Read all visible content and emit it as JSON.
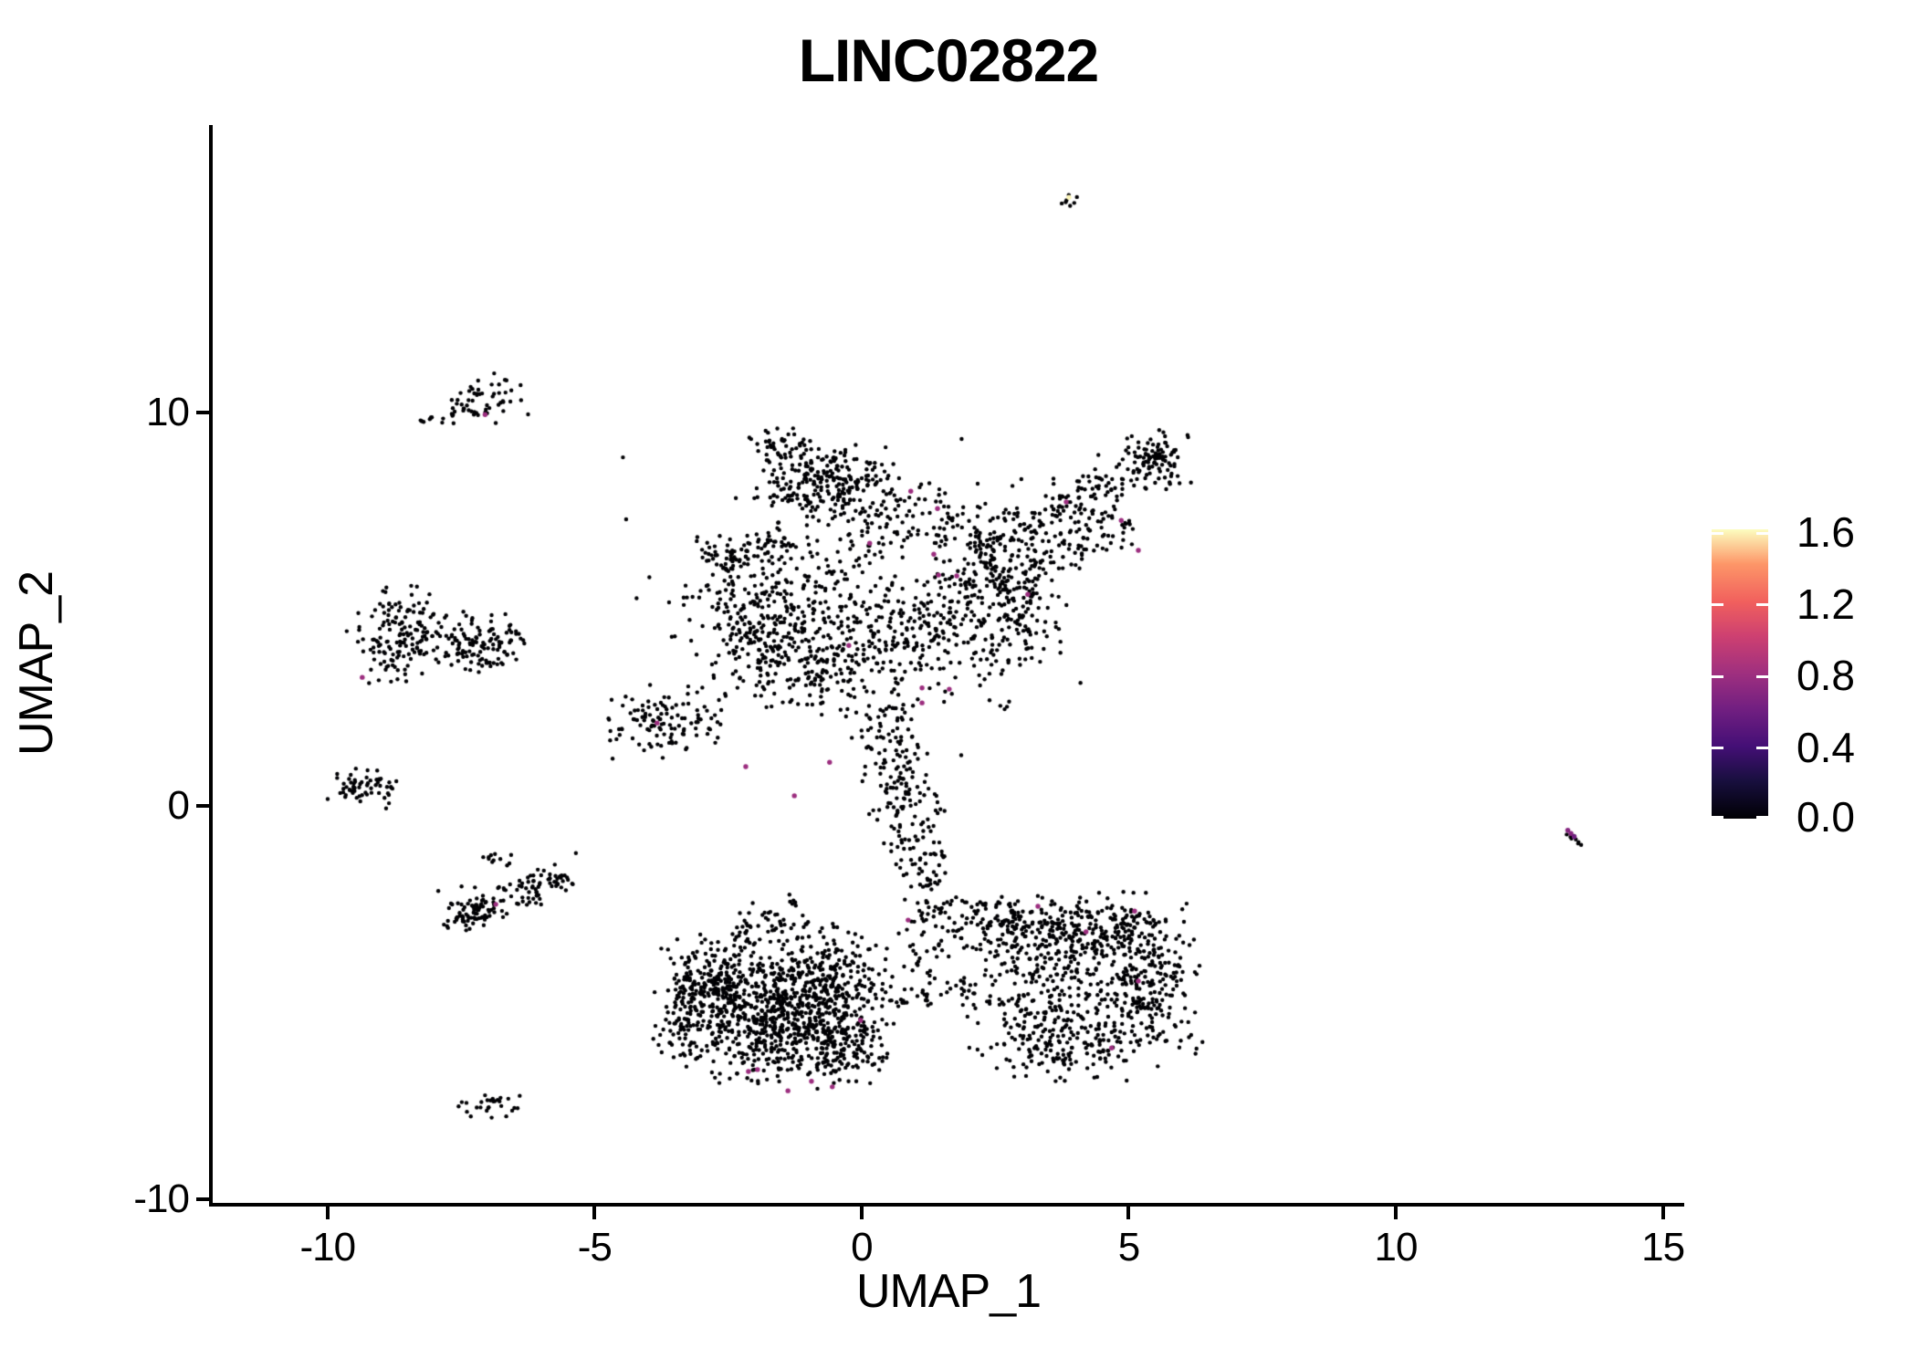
{
  "title": "LINC02822",
  "axes": {
    "x_label": "UMAP_1",
    "y_label": "UMAP_2",
    "x_ticks": [
      -10,
      -5,
      0,
      5,
      10,
      15
    ],
    "y_ticks": [
      -10,
      0,
      10
    ],
    "xlim": [
      -12.15,
      15.4
    ],
    "ylim": [
      -10.09,
      17.31
    ]
  },
  "colorbar": {
    "tick_labels": [
      "1.6",
      "1.2",
      "0.8",
      "0.4",
      "0.0"
    ],
    "tick_values": [
      1.6,
      1.2,
      0.8,
      0.4,
      0.0
    ],
    "vmin": 0.0,
    "vmax": 1.615,
    "colormap": "magma",
    "stops": [
      [
        0.0,
        "#000004"
      ],
      [
        0.13,
        "#180f3e"
      ],
      [
        0.25,
        "#440f76"
      ],
      [
        0.38,
        "#721f81"
      ],
      [
        0.5,
        "#9e2f7f"
      ],
      [
        0.63,
        "#cd4071"
      ],
      [
        0.75,
        "#f1605d"
      ],
      [
        0.88,
        "#fd9668"
      ],
      [
        1.0,
        "#fcfdbf"
      ]
    ]
  },
  "chart_data": {
    "type": "scatter",
    "title": "LINC02822",
    "xlabel": "UMAP_1",
    "ylabel": "UMAP_2",
    "legend_title_values": "expression 0.0 - 1.6",
    "point_color_zero": "#000004",
    "seed": 42,
    "point_radius": 2.2,
    "clusters": [
      {
        "kind": "gauss",
        "cx": 3.93,
        "cy": 15.42,
        "sx": 0.1,
        "sy": 0.09,
        "n": 4
      },
      {
        "kind": "gauss",
        "cx": -7.08,
        "cy": 10.38,
        "sx": 0.4,
        "sy": 0.3,
        "n": 48
      },
      {
        "kind": "gauss",
        "cx": -8.02,
        "cy": 9.86,
        "sx": 0.2,
        "sy": 0.09,
        "n": 10
      },
      {
        "kind": "ridge",
        "x1": -7.7,
        "y1": 9.95,
        "x2": -7.2,
        "y2": 10.02,
        "w": 0.07,
        "n": 8
      },
      {
        "kind": "gauss",
        "cx": -8.65,
        "cy": 4.6,
        "sx": 0.45,
        "sy": 0.5,
        "n": 95
      },
      {
        "kind": "gauss",
        "cx": -7.55,
        "cy": 4.2,
        "sx": 0.62,
        "sy": 0.38,
        "n": 115
      },
      {
        "kind": "gauss",
        "cx": -6.92,
        "cy": 3.9,
        "sx": 0.3,
        "sy": 0.3,
        "n": 40
      },
      {
        "kind": "gauss",
        "cx": -8.95,
        "cy": 3.55,
        "sx": 0.25,
        "sy": 0.3,
        "n": 25
      },
      {
        "kind": "gauss",
        "cx": -9.35,
        "cy": 0.45,
        "sx": 0.3,
        "sy": 0.24,
        "n": 60
      },
      {
        "kind": "gauss",
        "cx": -6.85,
        "cy": -1.3,
        "sx": 0.2,
        "sy": 0.13,
        "n": 11
      },
      {
        "kind": "ridge",
        "x1": -7.5,
        "y1": -2.9,
        "x2": -5.5,
        "y2": -1.75,
        "w": 0.2,
        "n": 110
      },
      {
        "kind": "gauss",
        "cx": -7.35,
        "cy": -2.7,
        "sx": 0.32,
        "sy": 0.3,
        "n": 45
      },
      {
        "kind": "gauss",
        "cx": -6.95,
        "cy": -7.6,
        "sx": 0.32,
        "sy": 0.16,
        "n": 28
      },
      {
        "kind": "gauss",
        "cx": -0.75,
        "cy": 8.3,
        "sx": 0.62,
        "sy": 0.5,
        "n": 230
      },
      {
        "kind": "gauss",
        "cx": -1.5,
        "cy": 9.2,
        "sx": 0.3,
        "sy": 0.22,
        "n": 35
      },
      {
        "kind": "gauss",
        "cx": 0.9,
        "cy": 7.3,
        "sx": 0.95,
        "sy": 0.5,
        "n": 140
      },
      {
        "kind": "ridge",
        "x1": 2.2,
        "y1": 6.3,
        "x2": 5.55,
        "y2": 8.95,
        "w": 0.32,
        "n": 210
      },
      {
        "kind": "gauss",
        "cx": 5.55,
        "cy": 8.85,
        "sx": 0.28,
        "sy": 0.38,
        "n": 75
      },
      {
        "kind": "ridge",
        "x1": 2.6,
        "y1": 5.6,
        "x2": 5.0,
        "y2": 7.3,
        "w": 0.27,
        "n": 95
      },
      {
        "kind": "gauss",
        "cx": 2.2,
        "cy": 5.7,
        "sx": 0.5,
        "sy": 0.45,
        "n": 65
      },
      {
        "kind": "gauss",
        "cx": -3.6,
        "cy": 2.1,
        "sx": 0.52,
        "sy": 0.5,
        "n": 115
      },
      {
        "kind": "gauss",
        "cx": -1.6,
        "cy": 5.1,
        "sx": 0.8,
        "sy": 0.85,
        "n": 280
      },
      {
        "kind": "gauss",
        "cx": -1.0,
        "cy": 3.6,
        "sx": 0.85,
        "sy": 0.6,
        "n": 210
      },
      {
        "kind": "ridge",
        "x1": -2.9,
        "y1": 6.1,
        "x2": -1.3,
        "y2": 6.9,
        "w": 0.3,
        "n": 75
      },
      {
        "kind": "gauss",
        "cx": 1.3,
        "cy": 4.5,
        "sx": 0.95,
        "sy": 0.85,
        "n": 230
      },
      {
        "kind": "gauss",
        "cx": 2.85,
        "cy": 4.9,
        "sx": 0.5,
        "sy": 0.6,
        "n": 90
      },
      {
        "kind": "ridge",
        "x1": 0.35,
        "y1": 2.6,
        "x2": 0.9,
        "y2": -0.5,
        "w": 0.33,
        "n": 150
      },
      {
        "kind": "ridge",
        "x1": 0.9,
        "y1": -0.5,
        "x2": 1.4,
        "y2": -2.9,
        "w": 0.28,
        "n": 90
      },
      {
        "kind": "gauss",
        "cx": 0.1,
        "cy": 5.3,
        "sx": 2.1,
        "sy": 1.9,
        "n": 130
      },
      {
        "kind": "gauss",
        "cx": -1.7,
        "cy": -5.3,
        "sx": 0.9,
        "sy": 0.8,
        "n": 720
      },
      {
        "kind": "gauss",
        "cx": -2.7,
        "cy": -4.35,
        "sx": 0.5,
        "sy": 0.5,
        "n": 180
      },
      {
        "kind": "gauss",
        "cx": -0.6,
        "cy": -4.3,
        "sx": 0.6,
        "sy": 0.6,
        "n": 180
      },
      {
        "kind": "gauss",
        "cx": -0.35,
        "cy": -6.1,
        "sx": 0.55,
        "sy": 0.5,
        "n": 150
      },
      {
        "kind": "ridge",
        "x1": -2.4,
        "y1": -3.4,
        "x2": -1.1,
        "y2": -2.7,
        "w": 0.3,
        "n": 65
      },
      {
        "kind": "gauss",
        "cx": -3.25,
        "cy": -5.4,
        "sx": 0.3,
        "sy": 0.5,
        "n": 55
      },
      {
        "kind": "ridge",
        "x1": 0.5,
        "y1": -5.05,
        "x2": 2.1,
        "y2": -4.6,
        "w": 0.16,
        "n": 32
      },
      {
        "kind": "gauss",
        "cx": 1.4,
        "cy": -3.6,
        "sx": 0.5,
        "sy": 0.6,
        "n": 45
      },
      {
        "kind": "gauss",
        "cx": 4.3,
        "cy": -3.2,
        "sx": 0.85,
        "sy": 0.5,
        "n": 270
      },
      {
        "kind": "gauss",
        "cx": 5.3,
        "cy": -4.5,
        "sx": 0.5,
        "sy": 0.85,
        "n": 230
      },
      {
        "kind": "gauss",
        "cx": 3.8,
        "cy": -5.9,
        "sx": 0.85,
        "sy": 0.5,
        "n": 210
      },
      {
        "kind": "gauss",
        "cx": 3.4,
        "cy": -4.3,
        "sx": 0.8,
        "sy": 0.8,
        "n": 170
      },
      {
        "kind": "gauss",
        "cx": 2.45,
        "cy": -2.95,
        "sx": 0.45,
        "sy": 0.4,
        "n": 95
      },
      {
        "kind": "ridge",
        "x1": 13.2,
        "y1": -0.6,
        "x2": 13.45,
        "y2": -0.95,
        "w": 0.04,
        "n": 5
      }
    ],
    "extra_black_points": [
      [
        3.98,
        15.33
      ],
      [
        4.03,
        15.48
      ],
      [
        3.82,
        15.35
      ],
      [
        -8.85,
        0.07
      ],
      [
        -5.35,
        -1.2
      ],
      [
        -6.25,
        -1.82
      ],
      [
        13.42,
        -0.92
      ],
      [
        13.47,
        -0.99
      ],
      [
        13.37,
        -0.85
      ]
    ],
    "highlight_points": [
      [
        3.88,
        15.47,
        1.6
      ],
      [
        -7.05,
        9.95,
        0.8
      ],
      [
        -9.35,
        3.27,
        0.8
      ],
      [
        -6.85,
        -2.5,
        0.8
      ],
      [
        0.92,
        8.0,
        0.8
      ],
      [
        1.42,
        7.56,
        0.8
      ],
      [
        0.15,
        6.68,
        0.8
      ],
      [
        1.35,
        6.4,
        0.8
      ],
      [
        1.44,
        5.87,
        0.8
      ],
      [
        1.78,
        5.85,
        0.8
      ],
      [
        3.11,
        5.38,
        0.8
      ],
      [
        3.83,
        7.73,
        0.8
      ],
      [
        4.86,
        7.26,
        0.8
      ],
      [
        5.18,
        6.5,
        0.8
      ],
      [
        -0.24,
        4.08,
        0.8
      ],
      [
        1.13,
        3.0,
        0.8
      ],
      [
        -2.17,
        1.0,
        0.8
      ],
      [
        -0.6,
        1.11,
        0.8
      ],
      [
        -1.26,
        0.26,
        0.8
      ],
      [
        1.13,
        2.62,
        0.8
      ],
      [
        1.64,
        2.97,
        0.8
      ],
      [
        -3.83,
        2.11,
        0.8
      ],
      [
        0.87,
        -2.9,
        0.8
      ],
      [
        -0.02,
        -5.45,
        0.8
      ],
      [
        -2.12,
        -6.75,
        0.8
      ],
      [
        -1.95,
        -6.7,
        0.8
      ],
      [
        -1.38,
        -7.24,
        0.8
      ],
      [
        -0.94,
        -7.0,
        0.8
      ],
      [
        -0.55,
        -7.14,
        0.8
      ],
      [
        3.3,
        -2.55,
        0.8
      ],
      [
        5.11,
        -2.67,
        0.8
      ],
      [
        4.2,
        -3.2,
        0.8
      ],
      [
        5.18,
        -4.45,
        0.8
      ],
      [
        4.68,
        -6.15,
        0.8
      ],
      [
        13.22,
        -0.62,
        0.7
      ],
      [
        13.28,
        -0.7,
        0.7
      ],
      [
        13.34,
        -0.78,
        0.6
      ]
    ]
  }
}
